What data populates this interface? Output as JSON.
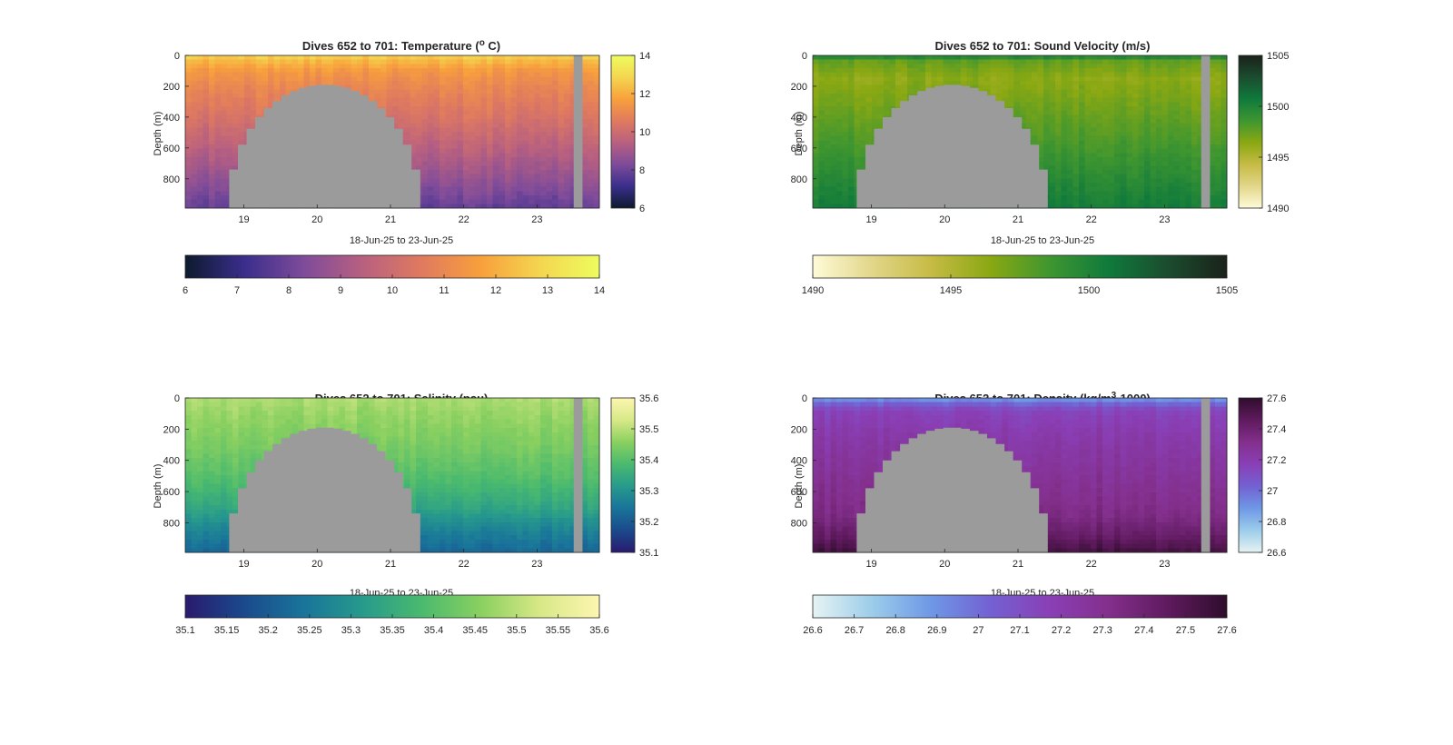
{
  "chart_data": [
    {
      "type": "heatmap",
      "title_main": "Dives 652 to 701: Temperature (",
      "title_sup": "o",
      "title_end": " C)",
      "xlabel": "18-Jun-25 to 23-Jun-25",
      "ylabel": "Depth (m)",
      "xlim": [
        18.2,
        23.85
      ],
      "ylim": [
        0,
        990
      ],
      "xticks": [
        "19",
        "20",
        "21",
        "22",
        "23"
      ],
      "yticks": [
        "0",
        "200",
        "400",
        "600",
        "800"
      ],
      "clim": [
        6,
        14
      ],
      "colorbar_side": [
        "6",
        "8",
        "10",
        "12",
        "14"
      ],
      "colorbar_bottom": [
        "6",
        "7",
        "8",
        "9",
        "10",
        "11",
        "12",
        "13",
        "14"
      ],
      "colormap": [
        "#0d1a2e",
        "#3a2e8c",
        "#7e4b9a",
        "#b86080",
        "#e07a5f",
        "#f8a03c",
        "#f4d650",
        "#eefc5e"
      ],
      "profile": [
        [
          0,
          12.8
        ],
        [
          40,
          12.2
        ],
        [
          100,
          11.5
        ],
        [
          200,
          11.0
        ],
        [
          400,
          10.3
        ],
        [
          600,
          9.5
        ],
        [
          800,
          8.7
        ],
        [
          990,
          7.8
        ]
      ],
      "data_gap_x": [
        23.5,
        23.62
      ],
      "no_data_region_x": [
        18.8,
        21.4
      ],
      "no_data_top_depth": 190
    },
    {
      "type": "heatmap",
      "title_main": "Dives 652 to 701: Sound Velocity (m/s)",
      "title_sup": "",
      "title_end": "",
      "xlabel": "18-Jun-25 to 23-Jun-25",
      "ylabel": "Depth (m)",
      "xlim": [
        18.2,
        23.85
      ],
      "ylim": [
        0,
        990
      ],
      "xticks": [
        "19",
        "20",
        "21",
        "22",
        "23"
      ],
      "yticks": [
        "0",
        "200",
        "400",
        "600",
        "800"
      ],
      "clim": [
        1490,
        1505
      ],
      "colorbar_side": [
        "1490",
        "1495",
        "1500",
        "1505"
      ],
      "colorbar_bottom": [
        "1490",
        "1495",
        "1500",
        "1505"
      ],
      "colormap": [
        "#fefbd8",
        "#e2d68a",
        "#c6bb45",
        "#8aa812",
        "#3f9630",
        "#0f7a3c",
        "#1b4c2e",
        "#1a221a"
      ],
      "profile": [
        [
          0,
          1500.5
        ],
        [
          40,
          1497.5
        ],
        [
          150,
          1496.3
        ],
        [
          300,
          1497.0
        ],
        [
          500,
          1498.0
        ],
        [
          700,
          1499.0
        ],
        [
          990,
          1500.5
        ]
      ],
      "data_gap_x": [
        23.5,
        23.62
      ],
      "no_data_region_x": [
        18.8,
        21.4
      ],
      "no_data_top_depth": 190
    },
    {
      "type": "heatmap",
      "title_main": "Dives 652 to 701: Salinity (psu)",
      "title_sup": "",
      "title_end": "",
      "xlabel": "18-Jun-25 to 23-Jun-25",
      "ylabel": "Depth (m)",
      "xlim": [
        18.2,
        23.85
      ],
      "ylim": [
        0,
        990
      ],
      "xticks": [
        "19",
        "20",
        "21",
        "22",
        "23"
      ],
      "yticks": [
        "0",
        "200",
        "400",
        "600",
        "800"
      ],
      "clim": [
        35.1,
        35.6
      ],
      "colorbar_side": [
        "35.1",
        "35.2",
        "35.3",
        "35.4",
        "35.5",
        "35.6"
      ],
      "colorbar_bottom": [
        "35.1",
        "35.15",
        "35.2",
        "35.25",
        "35.3",
        "35.35",
        "35.4",
        "35.45",
        "35.5",
        "35.55",
        "35.6"
      ],
      "colormap": [
        "#2a1a6e",
        "#1a4a8c",
        "#19749a",
        "#279a8c",
        "#4aba6e",
        "#8ad060",
        "#d8e887",
        "#fdf6b0"
      ],
      "profile": [
        [
          0,
          35.49
        ],
        [
          100,
          35.47
        ],
        [
          300,
          35.44
        ],
        [
          500,
          35.4
        ],
        [
          700,
          35.34
        ],
        [
          850,
          35.27
        ],
        [
          990,
          35.22
        ]
      ],
      "data_gap_x": [
        23.5,
        23.62
      ],
      "no_data_region_x": [
        18.8,
        21.4
      ],
      "no_data_top_depth": 190
    },
    {
      "type": "heatmap",
      "title_main": "Dives 652 to 701: Density (kg/m",
      "title_sup": "3",
      "title_end": "-1000)",
      "xlabel": "18-Jun-25 to 23-Jun-25",
      "ylabel": "Depth (m)",
      "xlim": [
        18.2,
        23.85
      ],
      "ylim": [
        0,
        990
      ],
      "xticks": [
        "19",
        "20",
        "21",
        "22",
        "23"
      ],
      "yticks": [
        "0",
        "200",
        "400",
        "600",
        "800"
      ],
      "clim": [
        26.6,
        27.6
      ],
      "colorbar_side": [
        "26.6",
        "26.8",
        "27",
        "27.2",
        "27.4",
        "27.6"
      ],
      "colorbar_bottom": [
        "26.6",
        "26.7",
        "26.8",
        "26.9",
        "27",
        "27.1",
        "27.2",
        "27.3",
        "27.4",
        "27.5",
        "27.6"
      ],
      "colormap": [
        "#e6f3f3",
        "#9ccdea",
        "#6e98e6",
        "#7361d2",
        "#8a3fb6",
        "#832f8c",
        "#5f1a5e",
        "#2f0d2c"
      ],
      "profile": [
        [
          0,
          26.85
        ],
        [
          30,
          27.0
        ],
        [
          80,
          27.15
        ],
        [
          250,
          27.22
        ],
        [
          500,
          27.28
        ],
        [
          750,
          27.34
        ],
        [
          900,
          27.45
        ],
        [
          990,
          27.55
        ]
      ],
      "data_gap_x": [
        23.5,
        23.62
      ],
      "no_data_region_x": [
        18.8,
        21.4
      ],
      "no_data_top_depth": 190
    }
  ]
}
